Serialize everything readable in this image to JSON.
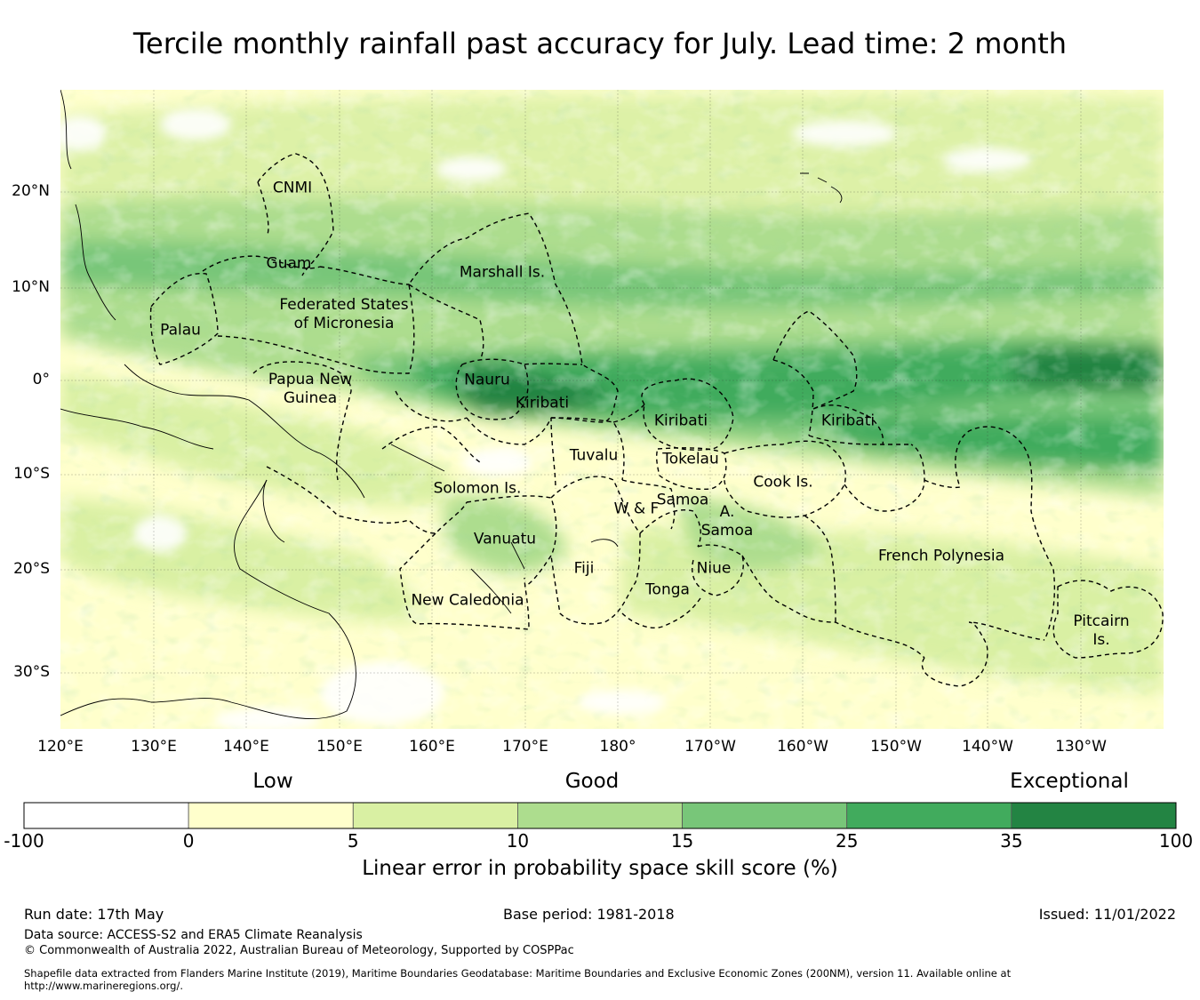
{
  "title": "Tercile monthly rainfall past accuracy for July. Lead time: 2 month",
  "map": {
    "lat_labels": [
      "20°N",
      "10°N",
      "0°",
      "10°S",
      "20°S",
      "30°S"
    ],
    "lon_labels": [
      "120°E",
      "130°E",
      "140°E",
      "150°E",
      "160°E",
      "170°E",
      "180°",
      "170°W",
      "160°W",
      "150°W",
      "140°W",
      "130°W"
    ],
    "regions": [
      "CNMI",
      "Guam",
      "Marshall Is.",
      "Federated States\nof Micronesia",
      "Palau",
      "Papua New\nGuinea",
      "Nauru",
      "Kiribati",
      "Kiribati",
      "Kiribati",
      "Tuvalu",
      "Tokelau",
      "Cook Is.",
      "Solomon Is.",
      "Samoa",
      "W & F",
      "A.\nSamoa",
      "Vanuatu",
      "Fiji",
      "Niue",
      "Tonga",
      "French Polynesia",
      "New Caledonia",
      "Pitcairn\nIs."
    ]
  },
  "colorbar": {
    "headings": [
      "Low",
      "Good",
      "Exceptional"
    ],
    "ticks": [
      "-100",
      "0",
      "5",
      "10",
      "15",
      "25",
      "35",
      "100"
    ],
    "colors": [
      "#ffffff",
      "#ffffcc",
      "#d9f0a3",
      "#addd8e",
      "#78c679",
      "#41ab5d",
      "#238443"
    ],
    "title": "Linear error in probability space skill score (%)"
  },
  "footer": {
    "run_date": "Run date: 17th May",
    "base_period": "Base period: 1981-2018",
    "issued": "Issued: 11/01/2022",
    "data_source": "Data source: ACCESS-S2 and ERA5 Climate Reanalysis",
    "copyright": "© Commonwealth of Australia 2022, Australian Bureau of Meteorology, Supported by COSPPac",
    "shapefile": "Shapefile data extracted from Flanders Marine Institute (2019), Maritime Boundaries Geodatabase: Maritime Boundaries and Exclusive Economic Zones (200NM), version 11. Available online at http://www.marineregions.org/."
  }
}
